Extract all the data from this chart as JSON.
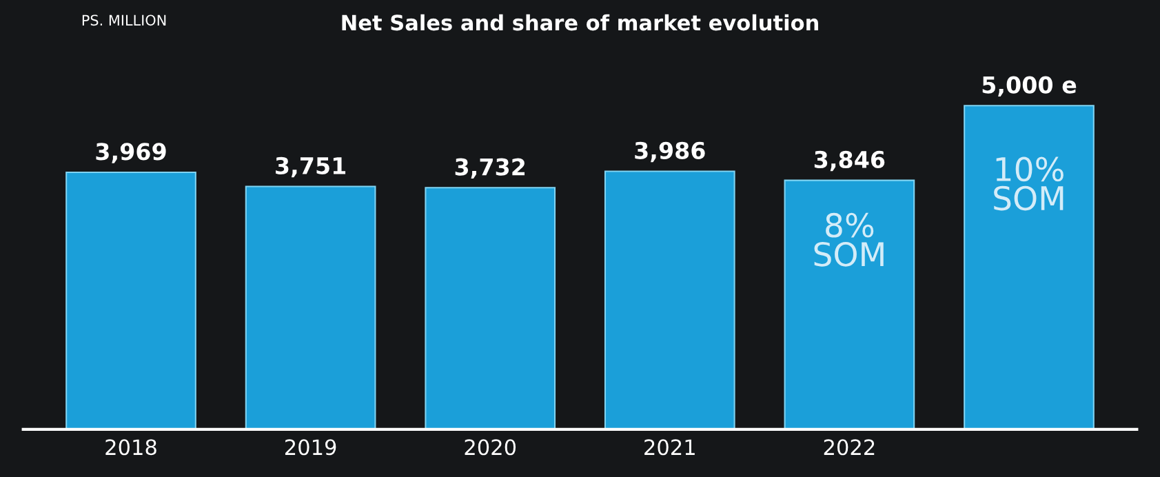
{
  "chart_data": {
    "type": "bar",
    "title": "Net Sales and share of market evolution",
    "categories": [
      "2018",
      "2019",
      "2020",
      "2021",
      "2022",
      null
    ],
    "values": [
      3969,
      3751,
      3732,
      3986,
      3846,
      5000
    ],
    "value_labels": [
      "3,969",
      "3,751",
      "3,732",
      "3,986",
      "3,846",
      "5,000 e"
    ],
    "color": "#1b9fd9",
    "grid": false,
    "annotations": [
      "PS. MILLION",
      "8%\nSOM",
      "10%\nSOM"
    ]
  }
}
